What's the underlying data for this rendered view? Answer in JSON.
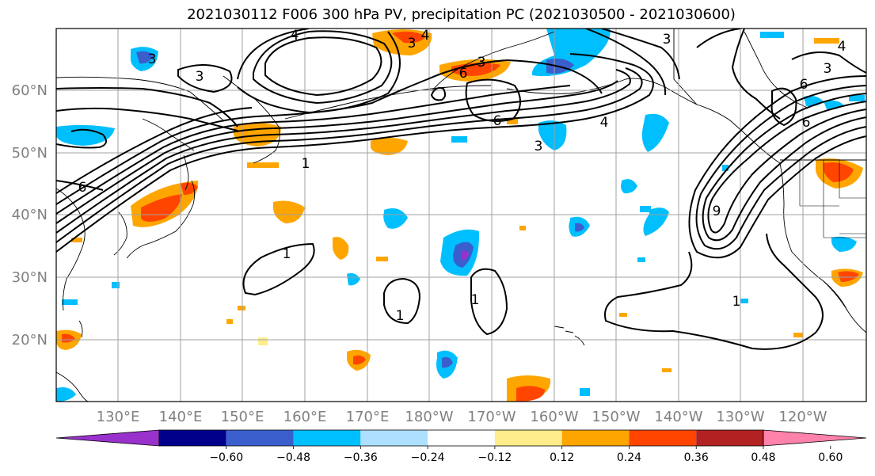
{
  "title": "2021030112 F006 300 hPa PV, precipitation PC (2021030500 - 2021030600)",
  "map": {
    "lat_labels": [
      "60°N",
      "50°N",
      "40°N",
      "30°N",
      "20°N"
    ],
    "lon_labels": [
      "130°E",
      "140°E",
      "150°E",
      "160°E",
      "170°E",
      "180°W",
      "170°W",
      "160°W",
      "150°W",
      "140°W",
      "130°W",
      "120°W"
    ],
    "pv_contour_labels": [
      "4",
      "3",
      "3",
      "4",
      "3",
      "6",
      "6",
      "3",
      "3",
      "6",
      "4",
      "3",
      "1",
      "6",
      "1",
      "1",
      "1",
      "1",
      "9",
      "6",
      "3",
      "4"
    ],
    "colors": {
      "contour": "#000000",
      "grid": "#a0a0a0",
      "coast": "#000000"
    }
  },
  "colorbar": {
    "tick_labels": [
      "−0.60",
      "−0.48",
      "−0.36",
      "−0.24",
      "−0.12",
      "0.12",
      "0.24",
      "0.36",
      "0.48",
      "0.60"
    ],
    "colors": [
      "#9932CC",
      "#00008B",
      "#3A5FCD",
      "#00BFFF",
      "#ADDFFF",
      "#FFFFFF",
      "#FFEC8B",
      "#FFA500",
      "#FF4500",
      "#B22222",
      "#FF82AB"
    ]
  }
}
